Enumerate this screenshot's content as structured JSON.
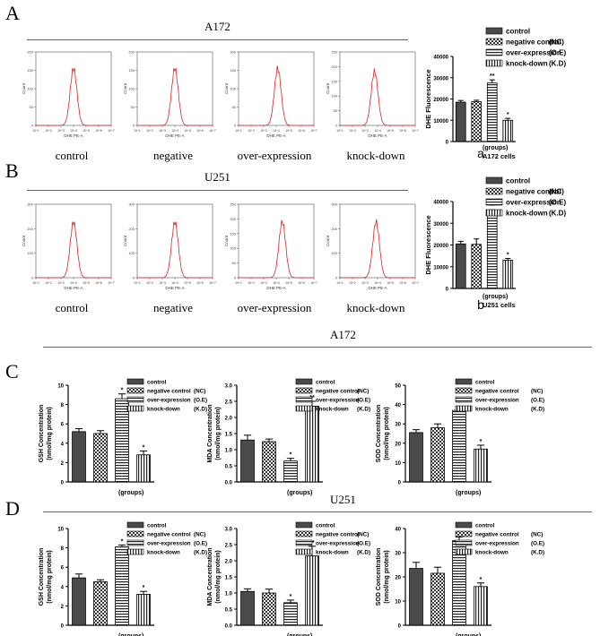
{
  "panels": {
    "A": {
      "letter": "A",
      "title": "A172"
    },
    "B": {
      "letter": "B",
      "title": "U251"
    },
    "C": {
      "letter": "C",
      "title": "A172"
    },
    "D": {
      "letter": "D",
      "title": "U251"
    }
  },
  "histograms": {
    "ylabel": "Count",
    "xlabel": "DHE PE-A",
    "xticks": [
      "10^1",
      "10^2",
      "10^3",
      "10^4",
      "10^5",
      "10^6",
      "10^7"
    ],
    "A": [
      {
        "label": "control",
        "yticks": [
          "0",
          "50",
          "100",
          "150",
          "200"
        ],
        "peak": 0.5,
        "height": 0.82
      },
      {
        "label": "negative",
        "yticks": [
          "0",
          "50",
          "100",
          "150",
          "200"
        ],
        "peak": 0.5,
        "height": 0.82
      },
      {
        "label": "over-expression",
        "yticks": [
          "0",
          "50",
          "100",
          "150",
          "200"
        ],
        "peak": 0.52,
        "height": 0.82
      },
      {
        "label": "knock-down",
        "yticks": [
          "0",
          "50",
          "100",
          "150",
          "200",
          "250"
        ],
        "peak": 0.46,
        "height": 0.78
      }
    ],
    "B": [
      {
        "label": "control",
        "yticks": [
          "0",
          "100",
          "200",
          "300"
        ],
        "peak": 0.5,
        "height": 0.8
      },
      {
        "label": "negative",
        "yticks": [
          "0",
          "100",
          "200",
          "300"
        ],
        "peak": 0.5,
        "height": 0.8
      },
      {
        "label": "over-expression",
        "yticks": [
          "0",
          "50",
          "100",
          "150",
          "200",
          "250"
        ],
        "peak": 0.58,
        "height": 0.8
      },
      {
        "label": "knock-down",
        "yticks": [
          "0",
          "100",
          "200",
          "300"
        ],
        "peak": 0.48,
        "height": 0.8
      }
    ]
  },
  "legend": {
    "full": [
      {
        "name": "control",
        "abbr": ""
      },
      {
        "name": "negative control",
        "abbr": "(NC)"
      },
      {
        "name": "over-expression",
        "abbr": "(O.E)"
      },
      {
        "name": "knock-down",
        "abbr": "(K.D)"
      }
    ]
  },
  "chart_data": [
    {
      "id": "Aa",
      "type": "bar",
      "panel_letter": "a",
      "subtitle": "A172 cells",
      "xlabel": "(groups)",
      "ylabel": "DHE Fluorescence",
      "categories": [
        "control",
        "negative control",
        "over-expression",
        "knock-down"
      ],
      "values": [
        18500,
        18700,
        27500,
        10000
      ],
      "errors": [
        800,
        700,
        1500,
        900
      ],
      "sig": [
        "",
        "",
        "**",
        "*"
      ],
      "ylim": [
        0,
        40000
      ],
      "yticks": [
        0,
        10000,
        20000,
        30000,
        40000
      ],
      "yticklabels": [
        "0",
        "10000",
        "20000",
        "30000",
        "40000"
      ]
    },
    {
      "id": "Bb",
      "type": "bar",
      "panel_letter": "b",
      "subtitle": "U251 cells",
      "xlabel": "(groups)",
      "ylabel": "DHE Fluorescence",
      "categories": [
        "control",
        "negative control",
        "over-expression",
        "knock-down"
      ],
      "values": [
        20500,
        20300,
        35000,
        13000
      ],
      "errors": [
        1200,
        2500,
        1200,
        800
      ],
      "sig": [
        "",
        "",
        "**",
        "*"
      ],
      "ylim": [
        0,
        40000
      ],
      "yticks": [
        0,
        10000,
        20000,
        30000,
        40000
      ],
      "yticklabels": [
        "0",
        "10000",
        "20000",
        "30000",
        "40000"
      ]
    },
    {
      "id": "C1",
      "type": "bar",
      "xlabel": "(groups)",
      "ylabel": "GSH Concentration",
      "ylabel2": "(nmol/mg protein)",
      "categories": [
        "control",
        "negative control",
        "over-expression",
        "knock-down"
      ],
      "values": [
        5.2,
        5.0,
        8.6,
        2.8
      ],
      "errors": [
        0.3,
        0.3,
        0.5,
        0.4
      ],
      "sig": [
        "",
        "",
        "*",
        "*"
      ],
      "ylim": [
        0,
        10
      ],
      "yticks": [
        0,
        2,
        4,
        6,
        8,
        10
      ],
      "yticklabels": [
        "0",
        "2",
        "4",
        "6",
        "8",
        "10"
      ]
    },
    {
      "id": "C2",
      "type": "bar",
      "xlabel": "(groups)",
      "ylabel": "MDA Concentration",
      "ylabel2": "(nmol/mg protein)",
      "categories": [
        "control",
        "negative control",
        "over-expression",
        "knock-down"
      ],
      "values": [
        1.3,
        1.25,
        0.65,
        2.35
      ],
      "errors": [
        0.15,
        0.08,
        0.08,
        0.15
      ],
      "sig": [
        "",
        "",
        "*",
        "**"
      ],
      "ylim": [
        0,
        3.0
      ],
      "yticks": [
        0,
        0.5,
        1.0,
        1.5,
        2.0,
        2.5,
        3.0
      ],
      "yticklabels": [
        "0.0",
        "0.5",
        "1.0",
        "1.5",
        "2.0",
        "2.5",
        "3.0"
      ]
    },
    {
      "id": "C3",
      "type": "bar",
      "xlabel": "(groups)",
      "ylabel": "SOD Concentration",
      "ylabel2": "(nmol/mg protein)",
      "categories": [
        "control",
        "negative control",
        "over-expression",
        "knock-down"
      ],
      "values": [
        25.5,
        28,
        37,
        17
      ],
      "errors": [
        1.5,
        2,
        2,
        2
      ],
      "sig": [
        "",
        "",
        "*",
        "*"
      ],
      "ylim": [
        0,
        50
      ],
      "yticks": [
        0,
        10,
        20,
        30,
        40,
        50
      ],
      "yticklabels": [
        "0",
        "10",
        "20",
        "30",
        "40",
        "50"
      ]
    },
    {
      "id": "D1",
      "type": "bar",
      "xlabel": "(groups)",
      "ylabel": "GSH Concentration",
      "ylabel2": "(nmol/mg protein)",
      "categories": [
        "control",
        "negative control",
        "over-expression",
        "knock-down"
      ],
      "values": [
        4.9,
        4.5,
        8.1,
        3.2
      ],
      "errors": [
        0.4,
        0.2,
        0.2,
        0.3
      ],
      "sig": [
        "",
        "",
        "*",
        "*"
      ],
      "ylim": [
        0,
        10
      ],
      "yticks": [
        0,
        2,
        4,
        6,
        8,
        10
      ],
      "yticklabels": [
        "0",
        "2",
        "4",
        "6",
        "8",
        "10"
      ]
    },
    {
      "id": "D2",
      "type": "bar",
      "xlabel": "(groups)",
      "ylabel": "MDA Concentration",
      "ylabel2": "(nmol/mg protein)",
      "categories": [
        "control",
        "negative control",
        "over-expression",
        "knock-down"
      ],
      "values": [
        1.05,
        1.0,
        0.7,
        2.15
      ],
      "errors": [
        0.08,
        0.12,
        0.08,
        0.3
      ],
      "sig": [
        "",
        "",
        "*",
        "**"
      ],
      "ylim": [
        0,
        3.0
      ],
      "yticks": [
        0,
        0.5,
        1.0,
        1.5,
        2.0,
        2.5,
        3.0
      ],
      "yticklabels": [
        "0.0",
        "0.5",
        "1.0",
        "1.5",
        "2.0",
        "2.5",
        "3.0"
      ]
    },
    {
      "id": "D3",
      "type": "bar",
      "xlabel": "(groups)",
      "ylabel": "SOD Concentration",
      "ylabel2": "(nmol/mg protein)",
      "categories": [
        "control",
        "negative control",
        "over-expression",
        "knock-down"
      ],
      "values": [
        23.5,
        21.5,
        35,
        16
      ],
      "errors": [
        2.5,
        2.5,
        1.5,
        1.5
      ],
      "sig": [
        "",
        "",
        "*",
        "*"
      ],
      "ylim": [
        0,
        40
      ],
      "yticks": [
        0,
        10,
        20,
        30,
        40
      ],
      "yticklabels": [
        "0",
        "10",
        "20",
        "30",
        "40"
      ]
    }
  ]
}
